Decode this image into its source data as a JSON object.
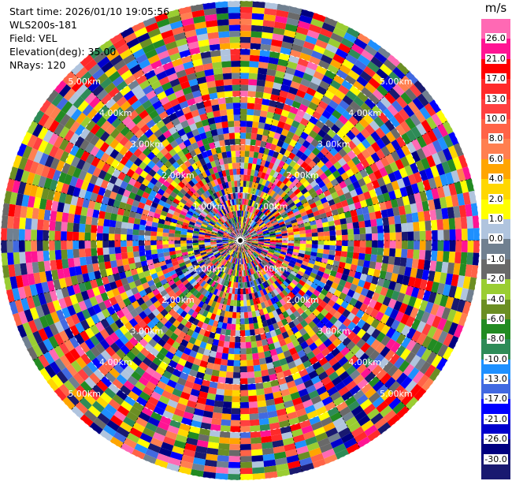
{
  "header": {
    "start_time": "Start time: 2026/01/10 19:05:56",
    "instrument": "WLS200s-181",
    "field": "Field: VEL",
    "elevation": "Elevation(deg): 35.00",
    "nrays": "NRays: 120"
  },
  "legend": {
    "unit": "m/s",
    "ticks": [
      "26.0",
      "21.0",
      "17.0",
      "13.0",
      "10.0",
      "8.0",
      "6.0",
      "4.0",
      "2.0",
      "1.0",
      "0.0",
      "-1.0",
      "-2.0",
      "-4.0",
      "-6.0",
      "-8.0",
      "-10.0",
      "-13.0",
      "-17.0",
      "-21.0",
      "-26.0",
      "-30.0"
    ],
    "colors": [
      "#ff69b4",
      "#ff1493",
      "#ff0000",
      "#ff2a2a",
      "#ff4040",
      "#ff6347",
      "#ff7f50",
      "#ffa500",
      "#ffd700",
      "#ffff00",
      "#b0c4de",
      "#708090",
      "#696969",
      "#9acd32",
      "#6b8e23",
      "#228b22",
      "#2e8b57",
      "#1e90ff",
      "#4169e1",
      "#0000ff",
      "#0000cd",
      "#000080",
      "#191970"
    ]
  },
  "range_rings": {
    "labels": [
      "1.00km",
      "2.00km",
      "3.00km",
      "4.00km",
      "5.00km"
    ]
  },
  "ppi": {
    "nrays": 120,
    "ngates": 40,
    "max_range_km": 5
  }
}
